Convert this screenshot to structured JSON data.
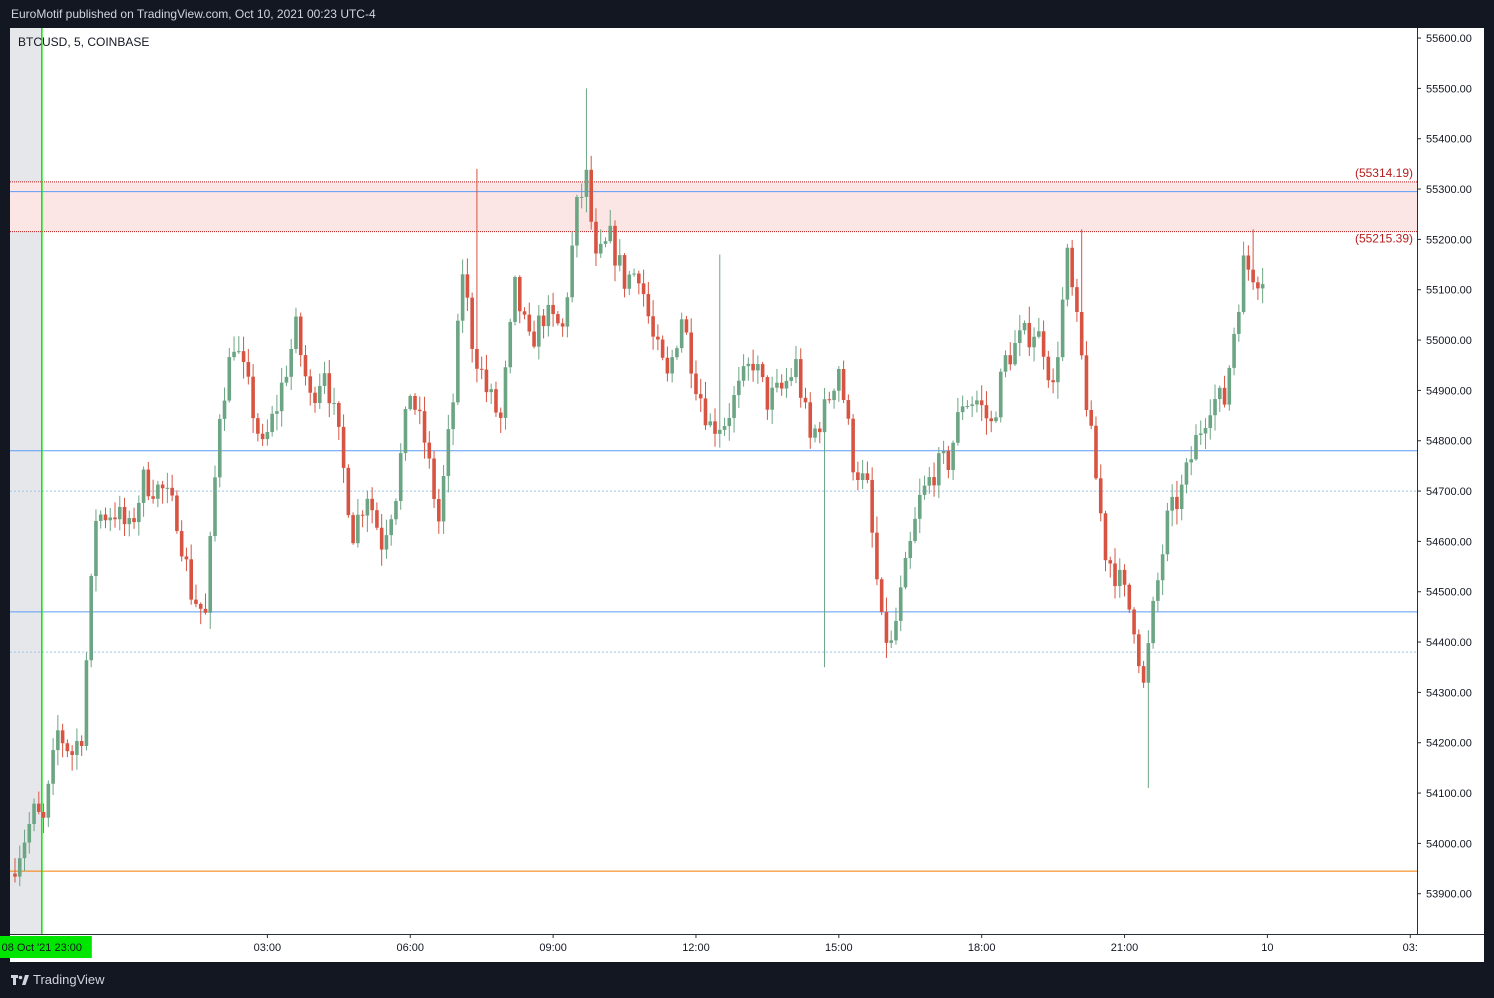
{
  "header": {
    "publisher_line": "EuroMotif published on TradingView.com, Oct 10, 2021 00:23 UTC-4"
  },
  "legend": {
    "symbol": "BTCUSD, 5, COINBASE"
  },
  "footer": {
    "brand": "TradingView"
  },
  "colors": {
    "up": "#6ba583",
    "down": "#d75442",
    "session_line": "#00e600",
    "blue_line": "#5b9cf6",
    "orange_line": "#f57c00",
    "zone_fill": "#fbe5e5",
    "zone_border": "#b71c1c",
    "shade": "#e6e7ea"
  },
  "chart_data": {
    "type": "candlestick",
    "symbol": "BTCUSD",
    "interval": "5",
    "exchange": "COINBASE",
    "ylim": [
      53820,
      55620
    ],
    "y_ticks": [
      "55600.00",
      "55500.00",
      "55400.00",
      "55300.00",
      "55200.00",
      "55100.00",
      "55000.00",
      "54900.00",
      "54800.00",
      "54700.00",
      "54600.00",
      "54500.00",
      "54400.00",
      "54300.00",
      "54200.00",
      "54100.00",
      "54000.00",
      "53900.00"
    ],
    "x_ticks": [
      {
        "label": "08 Oct '21   23:00",
        "index": 5,
        "highlight": true
      },
      {
        "label": "03:00",
        "index": 53
      },
      {
        "label": "06:00",
        "index": 83
      },
      {
        "label": "09:00",
        "index": 113
      },
      {
        "label": "12:00",
        "index": 143
      },
      {
        "label": "15:00",
        "index": 173
      },
      {
        "label": "18:00",
        "index": 203
      },
      {
        "label": "21:00",
        "index": 233
      },
      {
        "label": "10",
        "index": 263
      },
      {
        "label": "03:",
        "index": 293
      }
    ],
    "session_start_index": 5,
    "levels": {
      "zone_top": 55314.19,
      "zone_bottom": 55215.39,
      "zone_top_label": "(55314.19)",
      "zone_bottom_label": "(55215.39)",
      "blue_lines": [
        55295,
        54780,
        54460
      ],
      "dotted_lines": [
        54700,
        54380
      ],
      "orange_line": 53945
    },
    "anchors": [
      [
        0,
        53940
      ],
      [
        5,
        54060
      ],
      [
        7,
        54040
      ],
      [
        10,
        54220
      ],
      [
        13,
        54180
      ],
      [
        15,
        54220
      ],
      [
        18,
        54650
      ],
      [
        22,
        54660
      ],
      [
        25,
        54620
      ],
      [
        28,
        54720
      ],
      [
        32,
        54700
      ],
      [
        35,
        54650
      ],
      [
        38,
        54500
      ],
      [
        41,
        54450
      ],
      [
        44,
        54860
      ],
      [
        47,
        55000
      ],
      [
        50,
        54900
      ],
      [
        53,
        54780
      ],
      [
        56,
        54870
      ],
      [
        60,
        55020
      ],
      [
        63,
        54880
      ],
      [
        66,
        54950
      ],
      [
        69,
        54800
      ],
      [
        72,
        54620
      ],
      [
        75,
        54700
      ],
      [
        78,
        54600
      ],
      [
        81,
        54700
      ],
      [
        84,
        54900
      ],
      [
        87,
        54800
      ],
      [
        90,
        54640
      ],
      [
        93,
        54880
      ],
      [
        95,
        55140
      ],
      [
        97,
        55000
      ],
      [
        100,
        54900
      ],
      [
        103,
        54840
      ],
      [
        106,
        55100
      ],
      [
        109,
        54990
      ],
      [
        112,
        55050
      ],
      [
        116,
        55020
      ],
      [
        119,
        55260
      ],
      [
        121,
        55320
      ],
      [
        123,
        55150
      ],
      [
        126,
        55200
      ],
      [
        129,
        55120
      ],
      [
        132,
        55140
      ],
      [
        135,
        55000
      ],
      [
        138,
        54920
      ],
      [
        141,
        55050
      ],
      [
        144,
        54920
      ],
      [
        147,
        54830
      ],
      [
        150,
        54840
      ],
      [
        153,
        54900
      ],
      [
        156,
        54960
      ],
      [
        159,
        54880
      ],
      [
        162,
        54900
      ],
      [
        165,
        54950
      ],
      [
        168,
        54800
      ],
      [
        171,
        54860
      ],
      [
        174,
        54950
      ],
      [
        177,
        54760
      ],
      [
        180,
        54700
      ],
      [
        183,
        54430
      ],
      [
        185,
        54390
      ],
      [
        188,
        54540
      ],
      [
        191,
        54680
      ],
      [
        194,
        54740
      ],
      [
        197,
        54760
      ],
      [
        200,
        54880
      ],
      [
        203,
        54880
      ],
      [
        206,
        54830
      ],
      [
        209,
        54960
      ],
      [
        212,
        55000
      ],
      [
        215,
        55020
      ],
      [
        217,
        54990
      ],
      [
        219,
        54900
      ],
      [
        222,
        55160
      ],
      [
        225,
        54960
      ],
      [
        227,
        54800
      ],
      [
        230,
        54580
      ],
      [
        233,
        54520
      ],
      [
        236,
        54440
      ],
      [
        238,
        54310
      ],
      [
        240,
        54460
      ],
      [
        243,
        54640
      ],
      [
        246,
        54700
      ],
      [
        249,
        54800
      ],
      [
        252,
        54880
      ],
      [
        255,
        54880
      ],
      [
        257,
        55020
      ],
      [
        259,
        55150
      ],
      [
        262,
        55130
      ]
    ],
    "candle_count": 263,
    "wick_extremes": [
      {
        "index": 97,
        "high": 55340
      },
      {
        "index": 120,
        "high": 55500
      },
      {
        "index": 148,
        "high": 55170
      },
      {
        "index": 170,
        "low": 54350
      },
      {
        "index": 224,
        "high": 55220
      },
      {
        "index": 238,
        "low": 54110
      },
      {
        "index": 260,
        "high": 55220
      }
    ]
  }
}
